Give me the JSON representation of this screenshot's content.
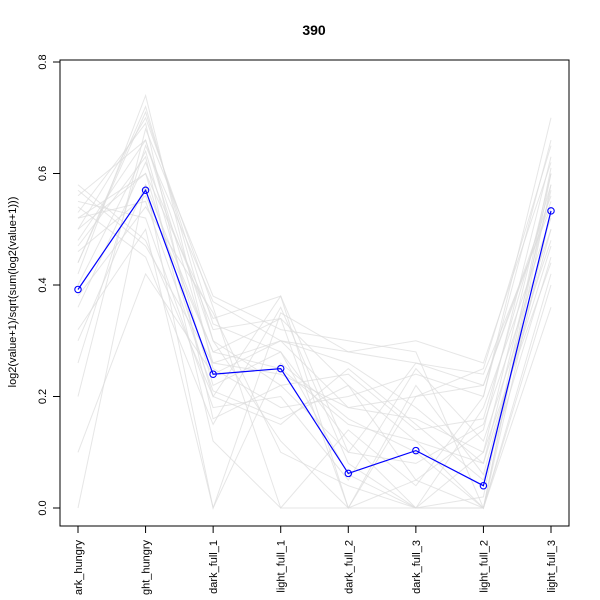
{
  "chart_data": {
    "type": "line",
    "title": "390",
    "xlabel": "",
    "ylabel": "log2(value+1)/sqrt(sum(log2(value+1)))",
    "ylim": [
      0,
      0.8
    ],
    "yticks": [
      "0.0",
      "0.2",
      "0.4",
      "0.6",
      "0.8"
    ],
    "categories": [
      "dark_hungry",
      "light_hungry",
      "dark_full_1",
      "light_full_1",
      "dark_full_2",
      "dark_full_3",
      "light_full_2",
      "light_full_3"
    ],
    "category_labels": [
      "ark_hungry",
      "ght_hungry",
      "dark_full_1",
      "light_full_1",
      "dark_full_2",
      "dark_full_3",
      "light_full_2",
      "light_full_3"
    ],
    "series": [
      {
        "color": "#0000ff",
        "marker": "open-circle",
        "values": [
          0.392,
          0.57,
          0.24,
          0.25,
          0.062,
          0.103,
          0.04,
          0.533
        ]
      }
    ],
    "background_series_color": "#dcdcdc",
    "background_series": [
      [
        0.0,
        0.58,
        0.0,
        0.35,
        0.28,
        0.3,
        0.26,
        0.62
      ],
      [
        0.52,
        0.6,
        0.34,
        0.38,
        0.0,
        0.0,
        0.0,
        0.6
      ],
      [
        0.44,
        0.72,
        0.3,
        0.22,
        0.1,
        0.08,
        0.15,
        0.5
      ],
      [
        0.48,
        0.66,
        0.26,
        0.3,
        0.18,
        0.2,
        0.22,
        0.55
      ],
      [
        0.55,
        0.52,
        0.18,
        0.2,
        0.05,
        0.25,
        0.12,
        0.48
      ],
      [
        0.36,
        0.62,
        0.32,
        0.34,
        0.22,
        0.05,
        0.0,
        0.58
      ],
      [
        0.58,
        0.48,
        0.2,
        0.15,
        0.25,
        0.15,
        0.05,
        0.45
      ],
      [
        0.5,
        0.7,
        0.36,
        0.0,
        0.0,
        0.2,
        0.25,
        0.65
      ],
      [
        0.4,
        0.64,
        0.22,
        0.28,
        0.12,
        0.0,
        0.18,
        0.52
      ],
      [
        0.46,
        0.56,
        0.28,
        0.25,
        0.15,
        0.12,
        0.08,
        0.57
      ],
      [
        0.2,
        0.68,
        0.38,
        0.32,
        0.3,
        0.28,
        0.0,
        0.42
      ],
      [
        0.54,
        0.45,
        0.15,
        0.36,
        0.08,
        0.0,
        0.1,
        0.6
      ],
      [
        0.42,
        0.74,
        0.25,
        0.18,
        0.2,
        0.24,
        0.2,
        0.7
      ],
      [
        0.32,
        0.5,
        0.0,
        0.26,
        0.16,
        0.1,
        0.0,
        0.4
      ],
      [
        0.56,
        0.66,
        0.3,
        0.12,
        0.0,
        0.05,
        0.14,
        0.63
      ],
      [
        0.1,
        0.42,
        0.24,
        0.3,
        0.26,
        0.18,
        0.08,
        0.47
      ],
      [
        0.5,
        0.6,
        0.2,
        0.38,
        0.1,
        0.26,
        0.24,
        0.54
      ],
      [
        0.38,
        0.54,
        0.35,
        0.1,
        0.04,
        0.0,
        0.0,
        0.36
      ],
      [
        0.53,
        0.69,
        0.16,
        0.22,
        0.24,
        0.14,
        0.16,
        0.58
      ],
      [
        0.3,
        0.58,
        0.28,
        0.34,
        0.0,
        0.22,
        0.06,
        0.5
      ],
      [
        0.47,
        0.63,
        0.12,
        0.0,
        0.14,
        0.04,
        0.2,
        0.66
      ],
      [
        0.57,
        0.47,
        0.26,
        0.24,
        0.18,
        0.16,
        0.1,
        0.44
      ],
      [
        0.44,
        0.71,
        0.33,
        0.28,
        0.06,
        0.0,
        0.02,
        0.61
      ],
      [
        0.52,
        0.55,
        0.21,
        0.16,
        0.22,
        0.12,
        0.0,
        0.53
      ],
      [
        0.26,
        0.65,
        0.37,
        0.3,
        0.28,
        0.26,
        0.22,
        0.56
      ]
    ]
  }
}
